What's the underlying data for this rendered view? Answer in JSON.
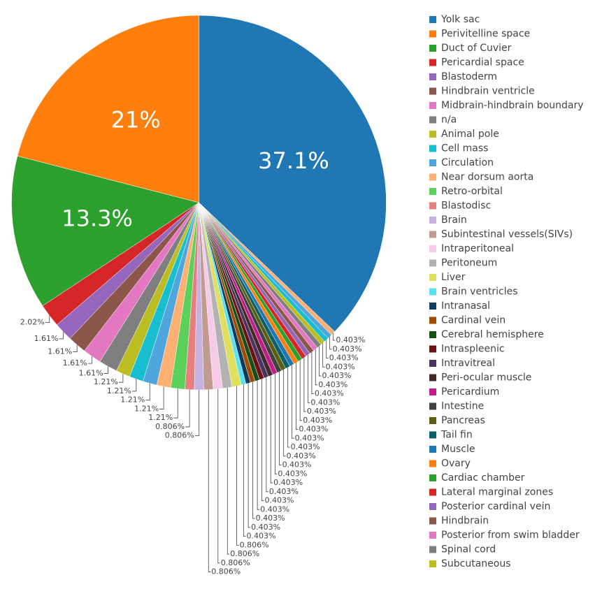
{
  "chart_data": {
    "type": "pie",
    "categories": [
      "Yolk sac",
      "Perivitelline space",
      "Duct of Cuvier",
      "Pericardial space",
      "Blastoderm",
      "Hindbrain ventricle",
      "Midbrain-hindbrain boundary",
      "n/a",
      "Animal pole",
      "Cell mass",
      "Circulation",
      "Near dorsum aorta",
      "Retro-orbital",
      "Blastodisc",
      "Brain",
      "Subintestinal vessels(SIVs)",
      "Intraperitoneal",
      "Peritoneum",
      "Liver",
      "Brain ventricles",
      "Intranasal",
      "Cardinal vein",
      "Cerebral hemisphere",
      "Intraspleenic",
      "Intravitreal",
      "Peri-ocular muscle",
      "Pericardium",
      "Intestine",
      "Pancreas",
      "Tail fin",
      "Muscle",
      "Ovary",
      "Cardiac chamber",
      "Lateral marginal zones",
      "Posterior cardinal vein",
      "Hindbrain",
      "Posterior from swim bladder",
      "Spinal cord",
      "Subcutaneous",
      null,
      null,
      null
    ],
    "values": [
      37.1,
      21,
      13.3,
      2.02,
      1.61,
      1.61,
      1.61,
      1.61,
      1.21,
      1.21,
      1.21,
      1.21,
      1.21,
      0.806,
      0.806,
      0.806,
      0.806,
      0.806,
      0.806,
      0.403,
      0.403,
      0.403,
      0.403,
      0.403,
      0.403,
      0.403,
      0.403,
      0.403,
      0.403,
      0.403,
      0.403,
      0.403,
      0.403,
      0.403,
      0.403,
      0.403,
      0.403,
      0.403,
      0.403,
      0.403,
      0.403,
      0.403
    ],
    "value_labels": [
      "37.1%",
      "21%",
      "13.3%",
      "2.02%",
      "1.61%",
      "1.61%",
      "1.61%",
      "1.61%",
      "1.21%",
      "1.21%",
      "1.21%",
      "1.21%",
      "1.21%",
      "0.806%",
      "0.806%",
      "0.806%",
      "0.806%",
      "0.806%",
      "0.806%",
      "0.403%",
      "0.403%",
      "0.403%",
      "0.403%",
      "0.403%",
      "0.403%",
      "0.403%",
      "0.403%",
      "0.403%",
      "0.403%",
      "0.403%",
      "0.403%",
      "0.403%",
      "0.403%",
      "0.403%",
      "0.403%",
      "0.403%",
      "0.403%",
      "0.403%",
      "0.403%",
      "0.403%",
      "0.403%",
      "0.403%"
    ],
    "colors": [
      "#1f77b4",
      "#ff7f0e",
      "#2ca02c",
      "#d62728",
      "#9467bd",
      "#8c564b",
      "#e377c2",
      "#7f7f7f",
      "#bcbd22",
      "#17becf",
      "#4ea6dc",
      "#ffb174",
      "#5bd05b",
      "#e77f7f",
      "#c7b1df",
      "#c19a92",
      "#f6cbe8",
      "#b2b2b2",
      "#e0e05f",
      "#5ae0ef",
      "#103d5d",
      "#a04b00",
      "#165016",
      "#6b1314",
      "#4a3363",
      "#45292a",
      "#c11c8a",
      "#404040",
      "#5e5e11",
      "#0b5f68",
      "#1f77b4",
      "#ff7f0e",
      "#2ca02c",
      "#d62728",
      "#9467bd",
      "#8c564b",
      "#e377c2",
      "#7f7f7f",
      "#bcbd22",
      "#17becf",
      "#4ea6dc",
      "#ffb174"
    ],
    "legend": "right"
  }
}
